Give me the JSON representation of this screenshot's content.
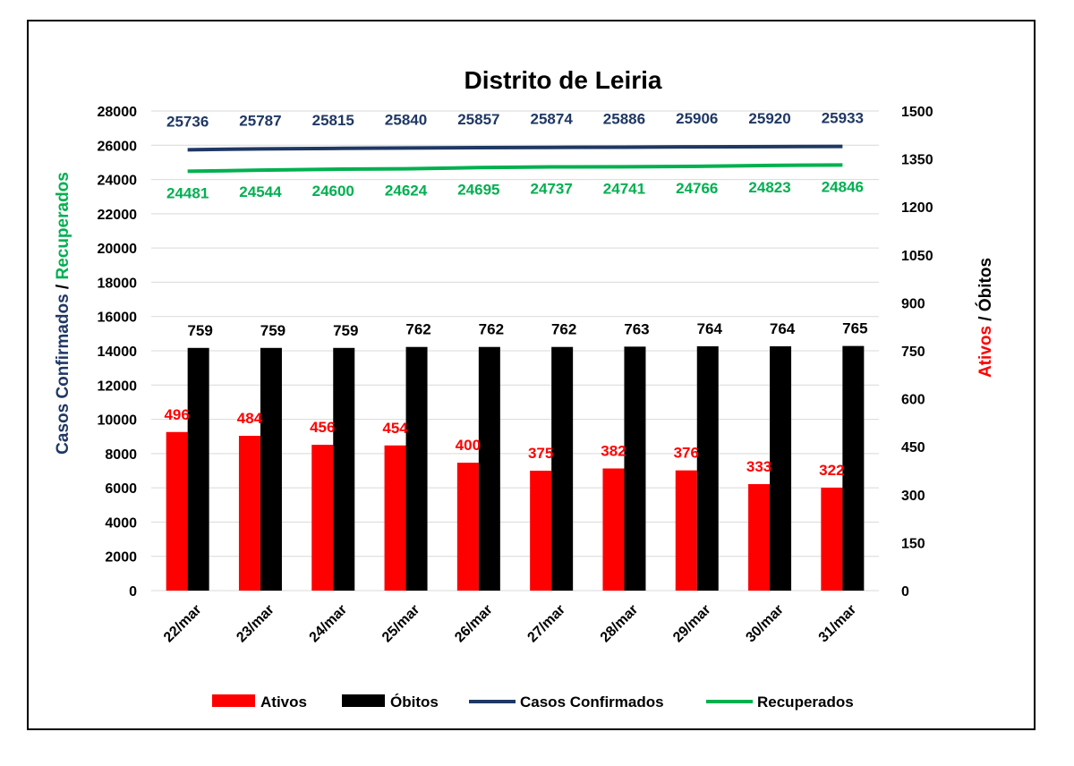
{
  "chart_data": {
    "type": "bar",
    "title": "Distrito de Leiria",
    "categories": [
      "22/mar",
      "23/mar",
      "24/mar",
      "25/mar",
      "26/mar",
      "27/mar",
      "28/mar",
      "29/mar",
      "30/mar",
      "31/mar"
    ],
    "series": [
      {
        "name": "Ativos",
        "type": "bar",
        "axis": "right",
        "color": "#ff0000",
        "values": [
          496,
          484,
          456,
          454,
          400,
          375,
          382,
          376,
          333,
          322
        ]
      },
      {
        "name": "Óbitos",
        "type": "bar",
        "axis": "right",
        "color": "#000000",
        "values": [
          759,
          759,
          759,
          762,
          762,
          762,
          763,
          764,
          764,
          765
        ]
      },
      {
        "name": "Casos Confirmados",
        "type": "line",
        "axis": "left",
        "color": "#1f3864",
        "values": [
          25736,
          25787,
          25815,
          25840,
          25857,
          25874,
          25886,
          25906,
          25920,
          25933
        ]
      },
      {
        "name": "Recuperados",
        "type": "line",
        "axis": "left",
        "color": "#00b050",
        "values": [
          24481,
          24544,
          24600,
          24624,
          24695,
          24737,
          24741,
          24766,
          24823,
          24846
        ]
      }
    ],
    "left_axis": {
      "label_part1": "Casos Confirmados",
      "label_sep": " / ",
      "label_part2": "Recuperados",
      "label_part1_color": "#1f3864",
      "label_part2_color": "#00b050",
      "ylim": [
        0,
        28000
      ],
      "ticks": [
        "0",
        "2000",
        "4000",
        "6000",
        "8000",
        "10000",
        "12000",
        "14000",
        "16000",
        "18000",
        "20000",
        "22000",
        "24000",
        "26000",
        "28000"
      ]
    },
    "right_axis": {
      "label_part1": "Ativos",
      "label_sep": " / ",
      "label_part2": "Óbitos",
      "label_part1_color": "#ff0000",
      "label_part2_color": "#000000",
      "ylim": [
        0,
        1500
      ],
      "ticks": [
        "0",
        "150",
        "300",
        "450",
        "600",
        "750",
        "900",
        "1050",
        "1200",
        "1350",
        "1500"
      ]
    },
    "grid": true,
    "legend_position": "bottom"
  }
}
